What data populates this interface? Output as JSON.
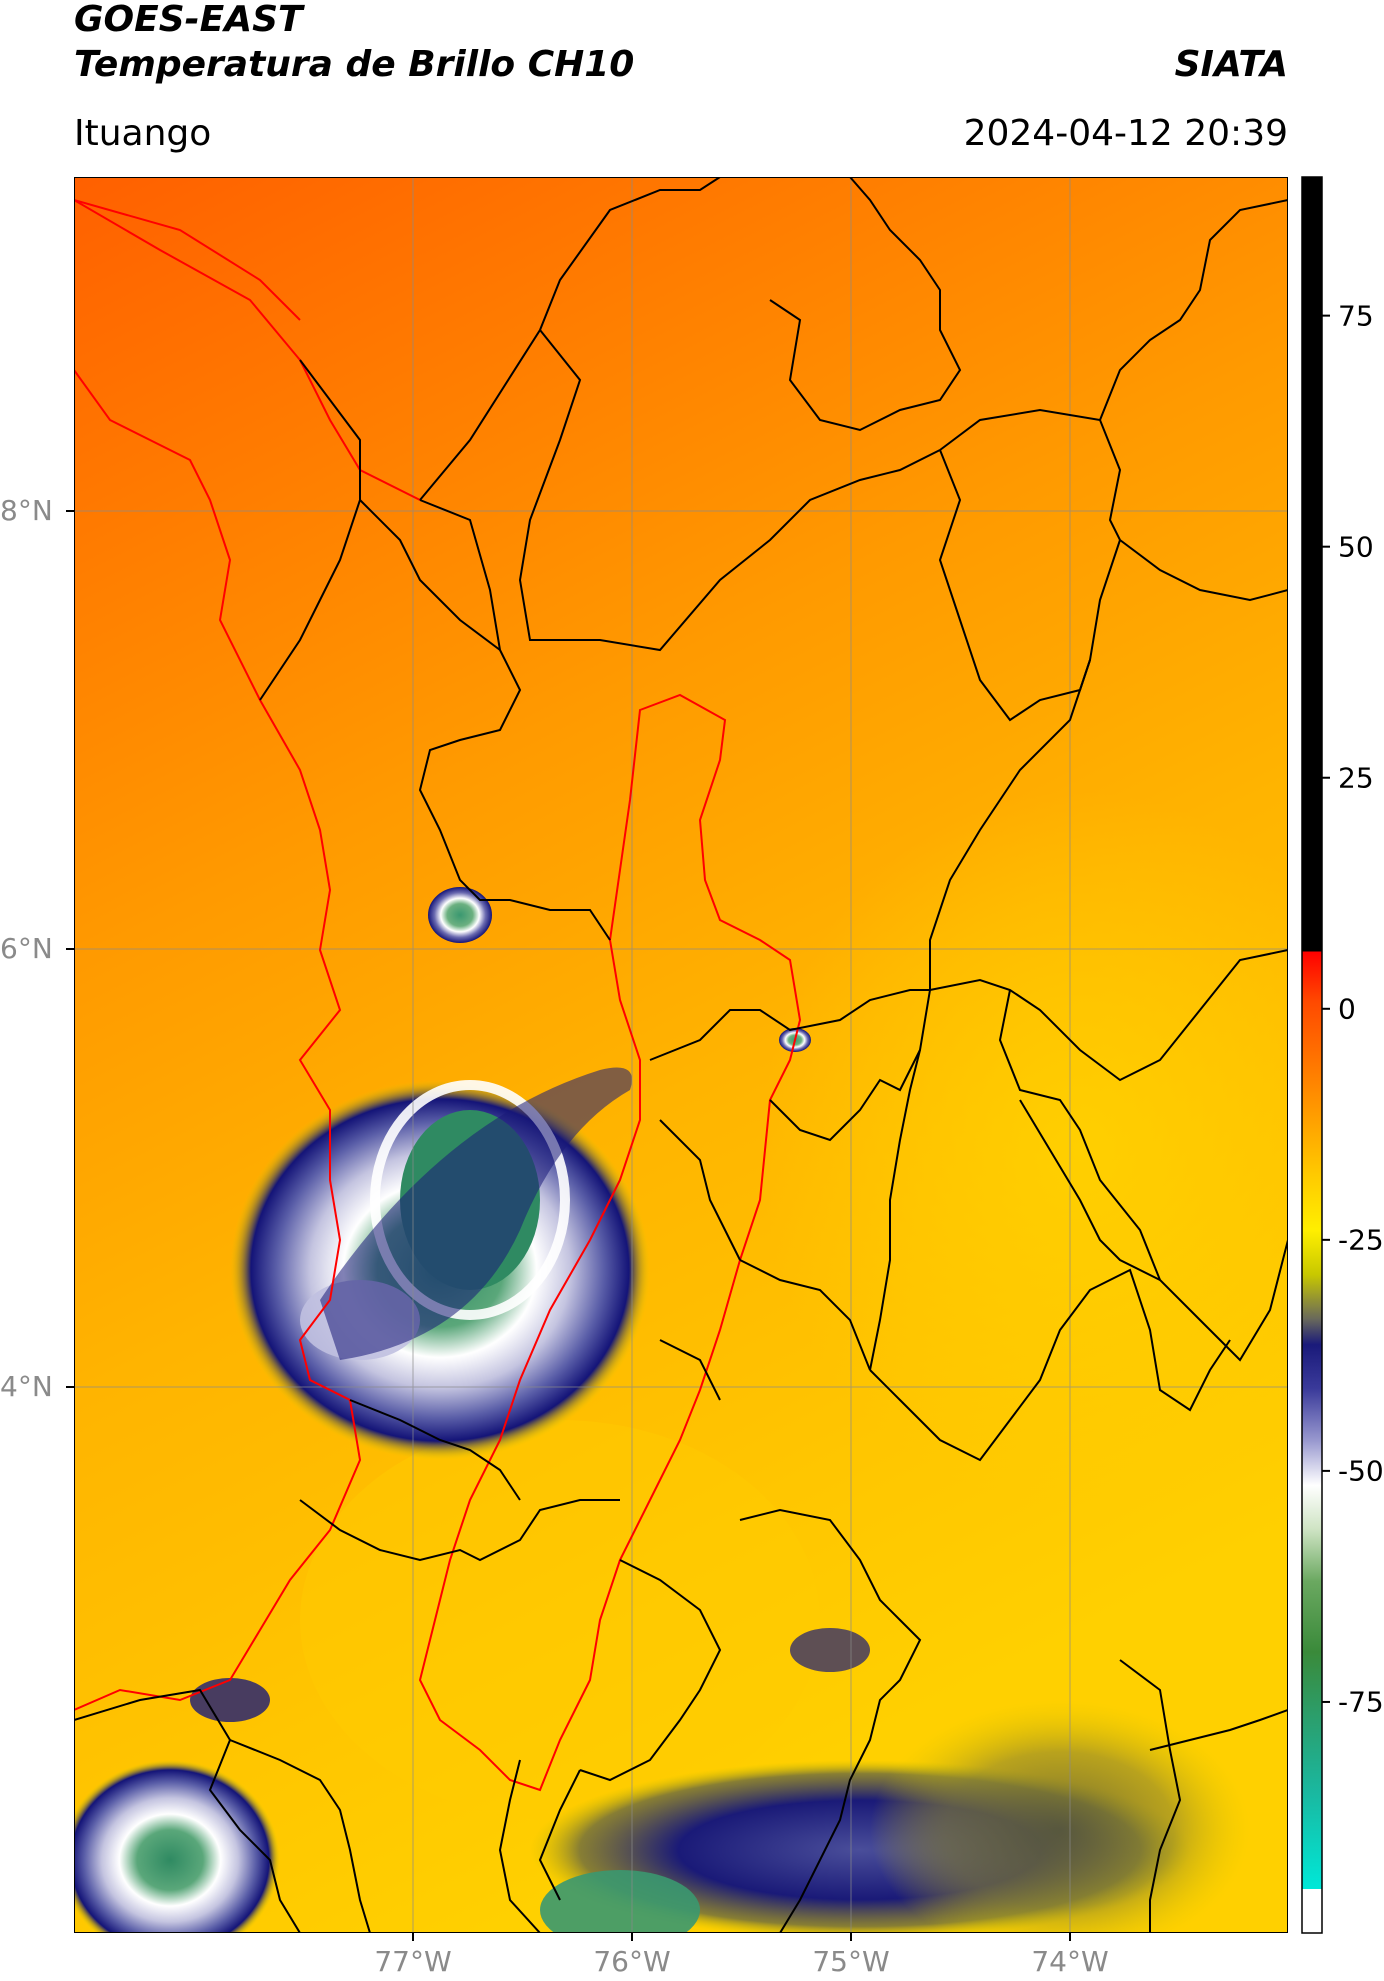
{
  "header": {
    "title_line1": "GOES-EAST",
    "title_line2": "Temperatura de Brillo CH10",
    "brand": "SIATA",
    "location": "Ituango",
    "datetime": "2024-04-12 20:39"
  },
  "map": {
    "lat_ticks": [
      "8°N",
      "6°N",
      "4°N"
    ],
    "lon_ticks": [
      "77°W",
      "76°W",
      "75°W",
      "74°W"
    ],
    "colors": {
      "warm_red": "#ff5a00",
      "orange": "#ff9900",
      "yellow": "#ffd400",
      "navy": "#1a1a7a",
      "cloud_white": "#f0f0f4",
      "green": "#3a9a6a",
      "border_black": "#000000",
      "basin_red": "#ff0000"
    }
  },
  "colorbar": {
    "labels": [
      "75",
      "50",
      "25",
      "0",
      "-25",
      "-50",
      "-75"
    ],
    "values": [
      75,
      50,
      25,
      0,
      -25,
      -50,
      -75
    ],
    "range": [
      -100,
      90
    ]
  }
}
